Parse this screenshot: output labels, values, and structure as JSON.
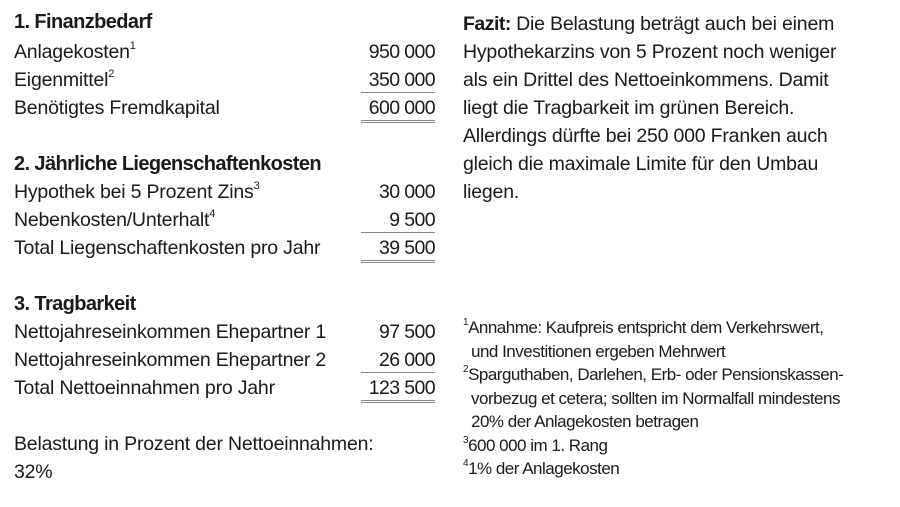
{
  "sections": [
    {
      "heading": "1. Finanzbedarf",
      "rows": [
        {
          "label": "Anlagekosten",
          "sup": "1",
          "value": "950 000"
        },
        {
          "label": "Eigenmittel",
          "sup": "2",
          "value": "350 000"
        },
        {
          "label": "Benötigtes Fremdkapital",
          "sup": "",
          "value": "600 000"
        }
      ]
    },
    {
      "heading": "2. Jährliche Liegenschaftenkosten",
      "rows": [
        {
          "label": "Hypothek bei 5 Prozent Zins",
          "sup": "3",
          "value": "30 000"
        },
        {
          "label": "Nebenkosten/Unterhalt",
          "sup": "4",
          "value": "9 500"
        },
        {
          "label": "Total Liegenschaftenkosten pro Jahr",
          "sup": "",
          "value": "39 500"
        }
      ]
    },
    {
      "heading": "3. Tragbarkeit",
      "rows": [
        {
          "label": "Nettojahreseinkommen Ehepartner 1",
          "sup": "",
          "value": "97 500"
        },
        {
          "label": "Nettojahreseinkommen Ehepartner 2",
          "sup": "",
          "value": "26 000"
        },
        {
          "label": "Total Nettoeinnahmen pro Jahr",
          "sup": "",
          "value": "123 500"
        }
      ]
    }
  ],
  "belastung": {
    "label": "Belastung in Prozent der Nettoeinnahmen:",
    "value": "32%"
  },
  "fazit": {
    "label": "Fazit:",
    "lines": [
      " Die Belastung beträgt auch bei einem",
      "Hypothekarzins von 5 Prozent noch weniger",
      "als ein Drittel des Nettoeinkommens. Damit",
      "liegt die Tragbarkeit im grünen Bereich.",
      "Allerdings dürfte bei 250 000 Franken auch",
      "gleich die maximale Limite für den Umbau",
      "liegen."
    ]
  },
  "footnotes": [
    {
      "num": "1",
      "lines": [
        "Annahme: Kaufpreis entspricht dem Verkehrswert,",
        "und Investitionen ergeben Mehrwert"
      ]
    },
    {
      "num": "2",
      "lines": [
        "Sparguthaben, Darlehen, Erb- oder Pensionskassen-",
        "vorbezug et cetera; sollten im Normalfall mindestens",
        "20% der Anlagekosten betragen"
      ]
    },
    {
      "num": "3",
      "lines": [
        "600 000 im 1. Rang"
      ]
    },
    {
      "num": "4",
      "lines": [
        "1% der Anlagekosten"
      ]
    }
  ]
}
